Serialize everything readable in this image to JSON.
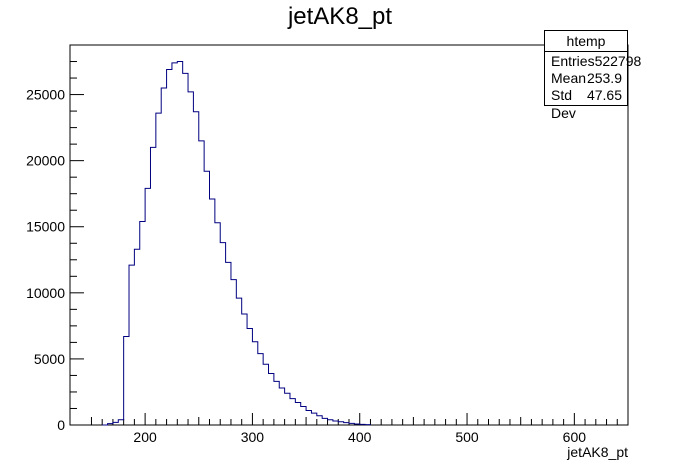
{
  "chart_data": {
    "type": "bar",
    "style": "step-histogram",
    "title": "jetAK8_pt",
    "xlabel": "jetAK8_pt",
    "ylabel": "",
    "xlim": [
      130,
      650
    ],
    "ylim": [
      0,
      28750
    ],
    "xticks": [
      200,
      300,
      400,
      500,
      600
    ],
    "yticks": [
      0,
      5000,
      10000,
      15000,
      20000,
      25000
    ],
    "line_color": "#000080",
    "bin_width": 5,
    "bin_start": 160,
    "values": [
      0,
      100,
      200,
      400,
      6700,
      12100,
      13300,
      15400,
      17900,
      21000,
      23600,
      25500,
      26900,
      27400,
      27500,
      26600,
      25200,
      23700,
      21500,
      19200,
      17100,
      15300,
      13800,
      12300,
      11000,
      9600,
      8400,
      7300,
      6300,
      5400,
      4600,
      3900,
      3300,
      2800,
      2400,
      2000,
      1700,
      1400,
      1100,
      900,
      700,
      500,
      400,
      300,
      250,
      180,
      120,
      80,
      50,
      30
    ]
  },
  "stats": {
    "name": "htemp",
    "rows": [
      {
        "label": "Entries",
        "value": "522798"
      },
      {
        "label": "Mean",
        "value": "253.9"
      },
      {
        "label": "Std Dev",
        "value": "47.65"
      }
    ]
  }
}
